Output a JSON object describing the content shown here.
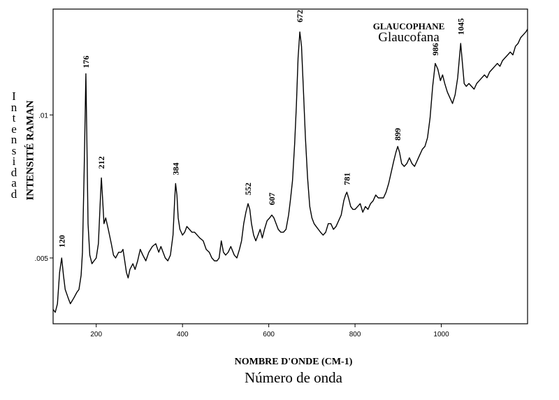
{
  "chart_data": {
    "type": "line",
    "title": "GLAUCOPHANE",
    "subtitle": "Glaucofana",
    "xlabel": "NOMBRE D'ONDE (CM-1)",
    "xlabel_secondary": "Número de onda",
    "ylabel": "INTENSITÉ RAMAN",
    "ylabel_secondary": "Intensidad",
    "xlim": [
      100,
      1200
    ],
    "ylim": [
      0.0027,
      0.0137
    ],
    "x_ticks": [
      200,
      400,
      600,
      800,
      1000
    ],
    "y_ticks": [
      0.005,
      0.01
    ],
    "y_tick_labels": [
      ".005",
      ".01"
    ],
    "grid": false,
    "line_color": "#000000",
    "peak_labels": [
      {
        "x": 120,
        "y": 0.00517,
        "label": "120"
      },
      {
        "x": 176,
        "y": 0.01144,
        "label": "176"
      },
      {
        "x": 212,
        "y": 0.00792,
        "label": "212"
      },
      {
        "x": 384,
        "y": 0.0077,
        "label": "384"
      },
      {
        "x": 552,
        "y": 0.007,
        "label": "552"
      },
      {
        "x": 607,
        "y": 0.00665,
        "label": "607"
      },
      {
        "x": 672,
        "y": 0.01304,
        "label": "672"
      },
      {
        "x": 781,
        "y": 0.00735,
        "label": "781"
      },
      {
        "x": 899,
        "y": 0.00891,
        "label": "899"
      },
      {
        "x": 986,
        "y": 0.01188,
        "label": "986"
      },
      {
        "x": 1045,
        "y": 0.0126,
        "label": "1045"
      }
    ],
    "series": [
      {
        "values": [
          [
            100,
            0.0032
          ],
          [
            105,
            0.0031
          ],
          [
            110,
            0.0034
          ],
          [
            115,
            0.0045
          ],
          [
            120,
            0.005
          ],
          [
            124,
            0.0044
          ],
          [
            128,
            0.0039
          ],
          [
            135,
            0.0036
          ],
          [
            140,
            0.0034
          ],
          [
            148,
            0.0036
          ],
          [
            155,
            0.0038
          ],
          [
            160,
            0.0039
          ],
          [
            165,
            0.0044
          ],
          [
            168,
            0.0052
          ],
          [
            172,
            0.008
          ],
          [
            176,
            0.01144
          ],
          [
            178,
            0.0095
          ],
          [
            181,
            0.0062
          ],
          [
            185,
            0.0051
          ],
          [
            190,
            0.0048
          ],
          [
            195,
            0.0049
          ],
          [
            200,
            0.005
          ],
          [
            205,
            0.0055
          ],
          [
            210,
            0.0072
          ],
          [
            212,
            0.0078
          ],
          [
            215,
            0.007
          ],
          [
            218,
            0.0062
          ],
          [
            222,
            0.0064
          ],
          [
            228,
            0.006
          ],
          [
            235,
            0.0055
          ],
          [
            240,
            0.0051
          ],
          [
            245,
            0.005
          ],
          [
            252,
            0.0052
          ],
          [
            258,
            0.0052
          ],
          [
            262,
            0.0053
          ],
          [
            266,
            0.0049
          ],
          [
            270,
            0.0045
          ],
          [
            274,
            0.0043
          ],
          [
            278,
            0.0046
          ],
          [
            285,
            0.0048
          ],
          [
            290,
            0.0046
          ],
          [
            296,
            0.0049
          ],
          [
            302,
            0.0053
          ],
          [
            308,
            0.0051
          ],
          [
            315,
            0.0049
          ],
          [
            322,
            0.0052
          ],
          [
            330,
            0.0054
          ],
          [
            338,
            0.0055
          ],
          [
            345,
            0.0052
          ],
          [
            350,
            0.0054
          ],
          [
            355,
            0.0052
          ],
          [
            360,
            0.005
          ],
          [
            366,
            0.0049
          ],
          [
            372,
            0.0051
          ],
          [
            378,
            0.0058
          ],
          [
            382,
            0.0071
          ],
          [
            384,
            0.0076
          ],
          [
            387,
            0.0072
          ],
          [
            390,
            0.0064
          ],
          [
            394,
            0.006
          ],
          [
            400,
            0.0058
          ],
          [
            405,
            0.0059
          ],
          [
            410,
            0.0061
          ],
          [
            416,
            0.006
          ],
          [
            422,
            0.0059
          ],
          [
            428,
            0.0059
          ],
          [
            434,
            0.0058
          ],
          [
            440,
            0.0057
          ],
          [
            448,
            0.0056
          ],
          [
            455,
            0.0053
          ],
          [
            462,
            0.0052
          ],
          [
            468,
            0.005
          ],
          [
            474,
            0.0049
          ],
          [
            480,
            0.0049
          ],
          [
            485,
            0.005
          ],
          [
            490,
            0.0056
          ],
          [
            495,
            0.0052
          ],
          [
            500,
            0.0051
          ],
          [
            506,
            0.0052
          ],
          [
            512,
            0.0054
          ],
          [
            520,
            0.0051
          ],
          [
            526,
            0.005
          ],
          [
            532,
            0.0053
          ],
          [
            537,
            0.0056
          ],
          [
            542,
            0.0062
          ],
          [
            547,
            0.0066
          ],
          [
            552,
            0.0069
          ],
          [
            556,
            0.0067
          ],
          [
            560,
            0.0062
          ],
          [
            565,
            0.0058
          ],
          [
            570,
            0.0056
          ],
          [
            575,
            0.0058
          ],
          [
            580,
            0.006
          ],
          [
            585,
            0.0057
          ],
          [
            590,
            0.006
          ],
          [
            596,
            0.0063
          ],
          [
            602,
            0.0064
          ],
          [
            607,
            0.0065
          ],
          [
            612,
            0.0064
          ],
          [
            617,
            0.0062
          ],
          [
            622,
            0.006
          ],
          [
            628,
            0.0059
          ],
          [
            634,
            0.0059
          ],
          [
            640,
            0.006
          ],
          [
            646,
            0.0065
          ],
          [
            650,
            0.007
          ],
          [
            655,
            0.0077
          ],
          [
            660,
            0.009
          ],
          [
            664,
            0.0103
          ],
          [
            668,
            0.012
          ],
          [
            672,
            0.0129
          ],
          [
            676,
            0.0124
          ],
          [
            680,
            0.011
          ],
          [
            685,
            0.0092
          ],
          [
            690,
            0.0078
          ],
          [
            695,
            0.0068
          ],
          [
            700,
            0.0064
          ],
          [
            705,
            0.0062
          ],
          [
            710,
            0.0061
          ],
          [
            715,
            0.006
          ],
          [
            720,
            0.0059
          ],
          [
            726,
            0.0058
          ],
          [
            732,
            0.0059
          ],
          [
            738,
            0.0062
          ],
          [
            744,
            0.0062
          ],
          [
            750,
            0.006
          ],
          [
            756,
            0.0061
          ],
          [
            762,
            0.0063
          ],
          [
            768,
            0.0065
          ],
          [
            774,
            0.007
          ],
          [
            778,
            0.0072
          ],
          [
            781,
            0.0073
          ],
          [
            785,
            0.0071
          ],
          [
            790,
            0.0068
          ],
          [
            795,
            0.0067
          ],
          [
            800,
            0.0067
          ],
          [
            806,
            0.0068
          ],
          [
            812,
            0.0069
          ],
          [
            818,
            0.0066
          ],
          [
            824,
            0.0068
          ],
          [
            830,
            0.0067
          ],
          [
            836,
            0.0069
          ],
          [
            842,
            0.007
          ],
          [
            848,
            0.0072
          ],
          [
            854,
            0.0071
          ],
          [
            860,
            0.0071
          ],
          [
            866,
            0.0071
          ],
          [
            872,
            0.0073
          ],
          [
            878,
            0.0076
          ],
          [
            884,
            0.008
          ],
          [
            890,
            0.0084
          ],
          [
            895,
            0.0087
          ],
          [
            899,
            0.0089
          ],
          [
            903,
            0.0087
          ],
          [
            908,
            0.0083
          ],
          [
            914,
            0.0082
          ],
          [
            920,
            0.0083
          ],
          [
            926,
            0.0085
          ],
          [
            932,
            0.0083
          ],
          [
            938,
            0.0082
          ],
          [
            944,
            0.0084
          ],
          [
            950,
            0.0086
          ],
          [
            956,
            0.0088
          ],
          [
            962,
            0.0089
          ],
          [
            968,
            0.0092
          ],
          [
            974,
            0.0099
          ],
          [
            980,
            0.011
          ],
          [
            986,
            0.0118
          ],
          [
            992,
            0.0116
          ],
          [
            998,
            0.0112
          ],
          [
            1003,
            0.0114
          ],
          [
            1008,
            0.0111
          ],
          [
            1014,
            0.0108
          ],
          [
            1020,
            0.0106
          ],
          [
            1026,
            0.0104
          ],
          [
            1032,
            0.0107
          ],
          [
            1038,
            0.0113
          ],
          [
            1042,
            0.012
          ],
          [
            1045,
            0.0125
          ],
          [
            1049,
            0.0118
          ],
          [
            1053,
            0.0111
          ],
          [
            1058,
            0.011
          ],
          [
            1064,
            0.0111
          ],
          [
            1070,
            0.011
          ],
          [
            1076,
            0.0109
          ],
          [
            1082,
            0.0111
          ],
          [
            1088,
            0.0112
          ],
          [
            1094,
            0.0113
          ],
          [
            1100,
            0.0114
          ],
          [
            1106,
            0.0113
          ],
          [
            1112,
            0.0115
          ],
          [
            1118,
            0.0116
          ],
          [
            1124,
            0.0117
          ],
          [
            1130,
            0.0118
          ],
          [
            1136,
            0.0117
          ],
          [
            1142,
            0.0119
          ],
          [
            1148,
            0.012
          ],
          [
            1154,
            0.0121
          ],
          [
            1160,
            0.0122
          ],
          [
            1166,
            0.0121
          ],
          [
            1172,
            0.0124
          ],
          [
            1178,
            0.0125
          ],
          [
            1184,
            0.0127
          ],
          [
            1190,
            0.0128
          ],
          [
            1196,
            0.0129
          ],
          [
            1200,
            0.013
          ]
        ]
      }
    ]
  }
}
